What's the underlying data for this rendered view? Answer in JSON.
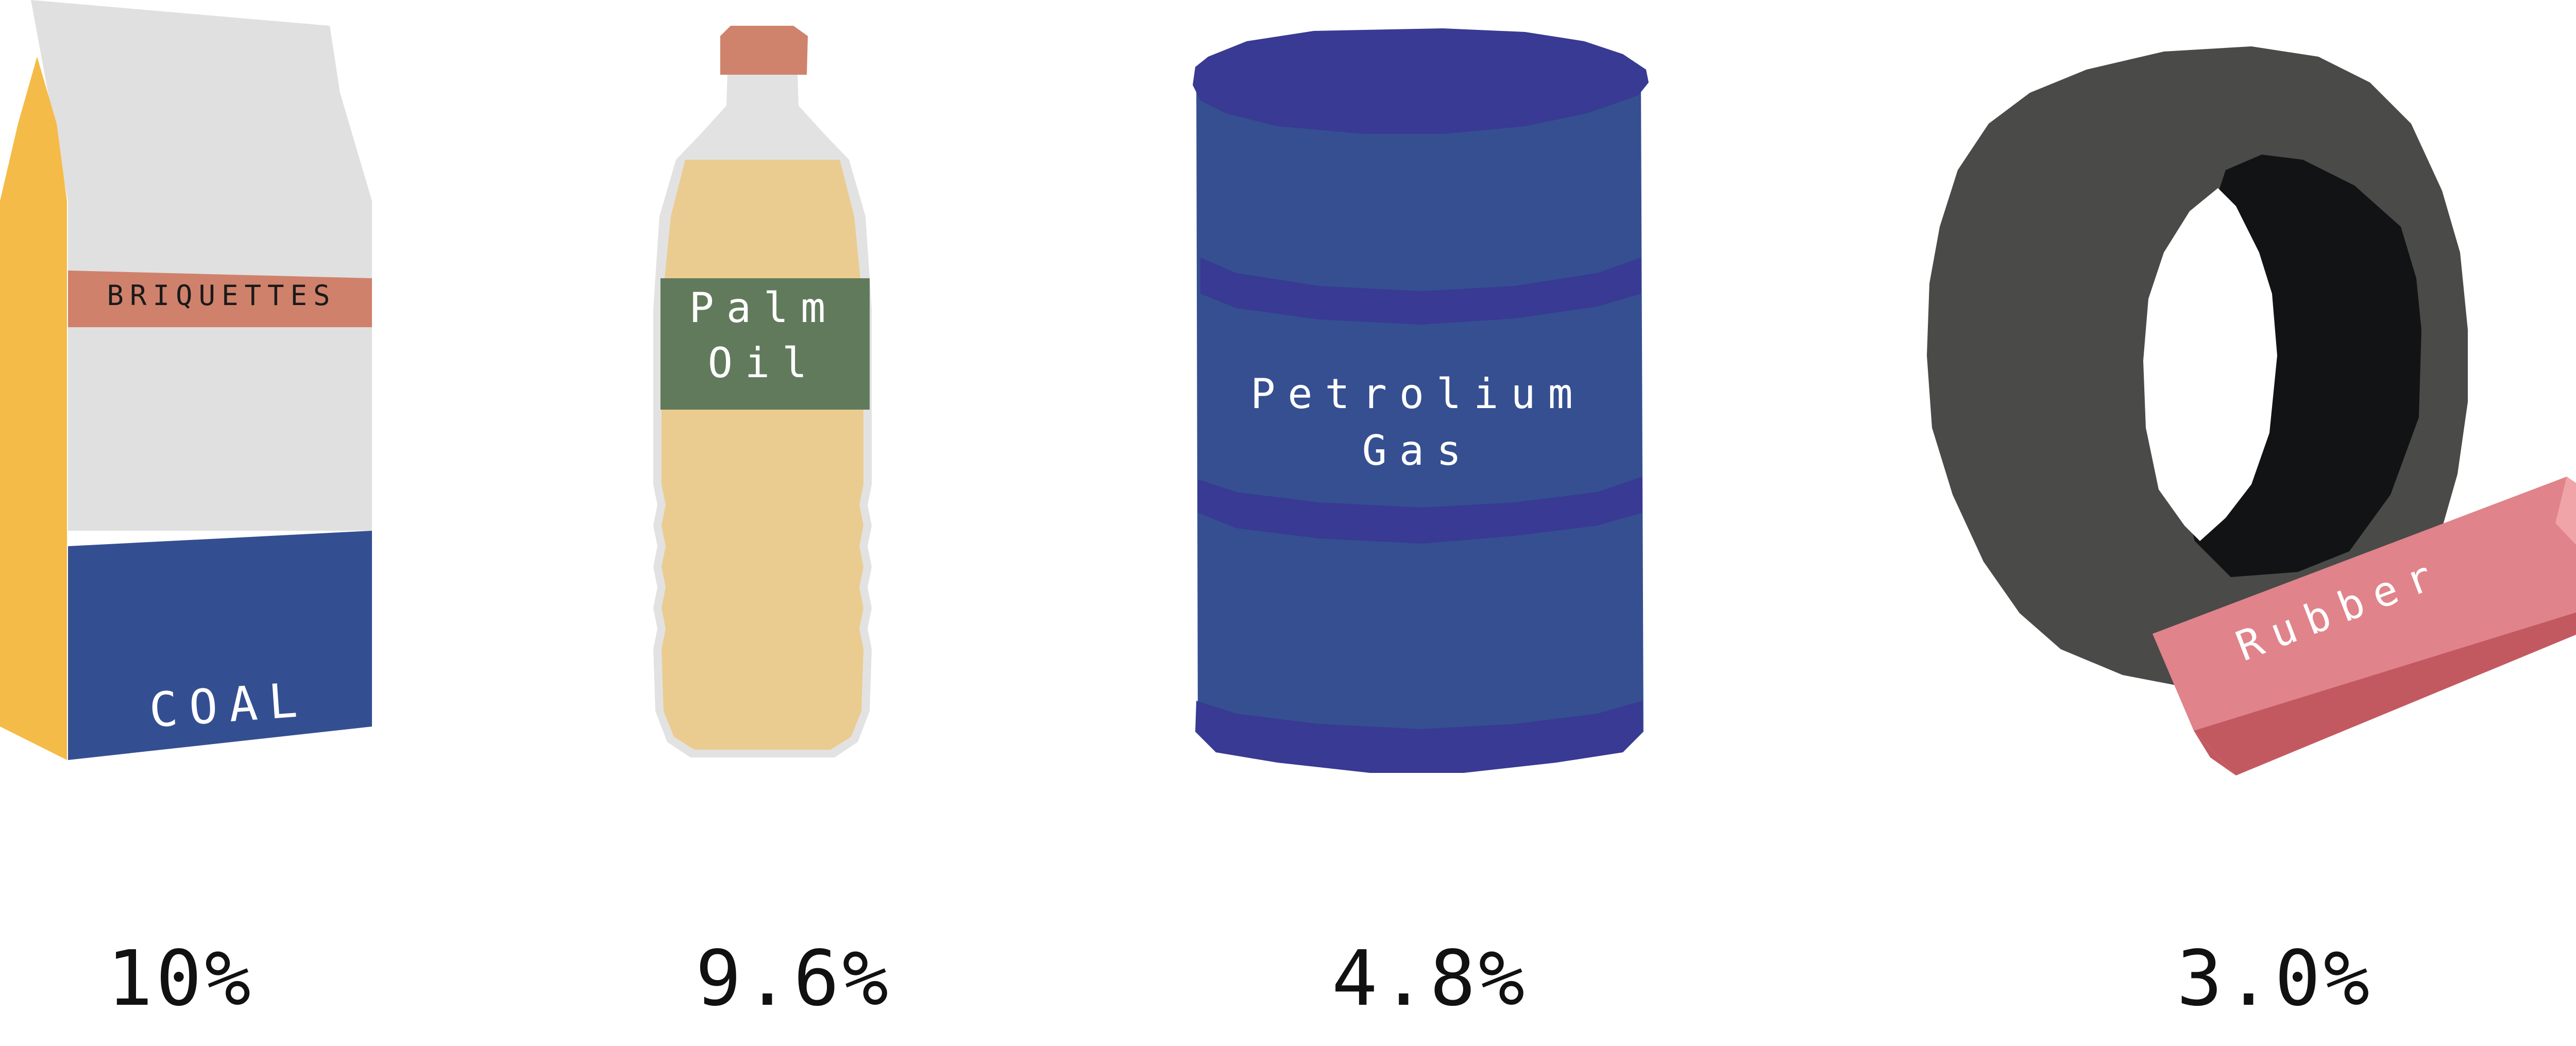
{
  "items": [
    {
      "bag_top_label": "BRIQUETTES",
      "bag_bottom_label": "COAL",
      "percent": "10%",
      "colors": {
        "bag": "#e0e0e0",
        "side": "#f5bb48",
        "band": "#d0816b",
        "base": "#344f91"
      }
    },
    {
      "label_line1": "Palm",
      "label_line2": "Oil",
      "percent": "9.6%",
      "colors": {
        "oil": "#ebcc90",
        "cap": "#cf826c",
        "label": "#627a5c"
      }
    },
    {
      "label_line1": "Petrolium",
      "label_line2": "Gas",
      "percent": "4.8%",
      "colors": {
        "barrel": "#354f91",
        "rim": "#383a93"
      }
    },
    {
      "label": "Rubber",
      "percent": "3.0%",
      "colors": {
        "tire": "#4a4a48",
        "inner": "#121314",
        "rubber_top": "#e0838a",
        "rubber_side": "#c35960"
      }
    }
  ]
}
